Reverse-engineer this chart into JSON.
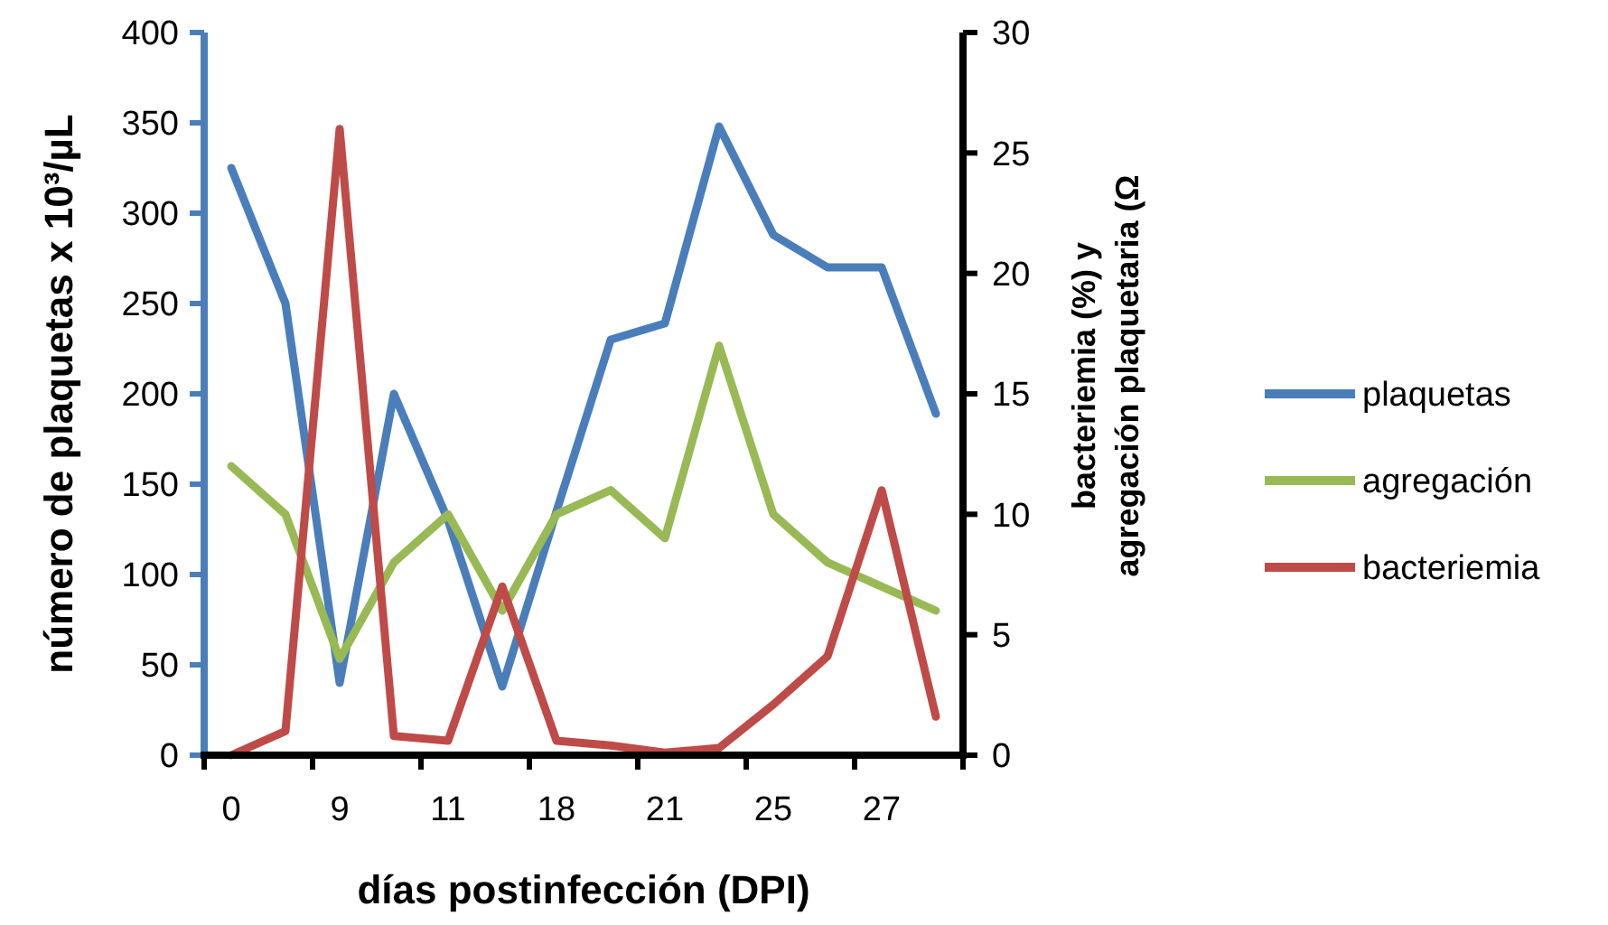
{
  "chart_data": {
    "type": "line",
    "xlabel": "días postinfección (DPI)",
    "ylabel": "número de plaquetas x 10³/µL",
    "y2label": "bacteriemia (%)  y\nagregación plaquetaria (Ω",
    "categories": [
      "0",
      null,
      "9",
      null,
      "11",
      null,
      "18",
      null,
      "21",
      null,
      "25",
      null,
      "27",
      null
    ],
    "series": [
      {
        "name": "plaquetas",
        "color": "#4a7ebb",
        "values": [
          325,
          250,
          40,
          200,
          130,
          38,
          135,
          230,
          239,
          348,
          288,
          270,
          270,
          189
        ]
      },
      {
        "name": "agregación",
        "color": "#98b954",
        "values": [
          12,
          10,
          4,
          8,
          10,
          6,
          10,
          11,
          9,
          17,
          10,
          8,
          7,
          6
        ],
        "axis": "y2"
      },
      {
        "name": "bacteriemia",
        "color": "#be4b48",
        "values": [
          0,
          1,
          26,
          0.8,
          0.6,
          7,
          0.6,
          0.4,
          0.1,
          0.3,
          2.1,
          4.1,
          11,
          1.6
        ],
        "axis": "y2"
      }
    ],
    "ylim": [
      0,
      400
    ],
    "yticks": [
      0,
      50,
      100,
      150,
      200,
      250,
      300,
      350,
      400
    ],
    "y2lim": [
      0,
      30
    ],
    "y2ticks": [
      0,
      5,
      10,
      15,
      20,
      25,
      30
    ],
    "legend": "right",
    "grid": false,
    "marker": "none",
    "line_style": "solid"
  }
}
